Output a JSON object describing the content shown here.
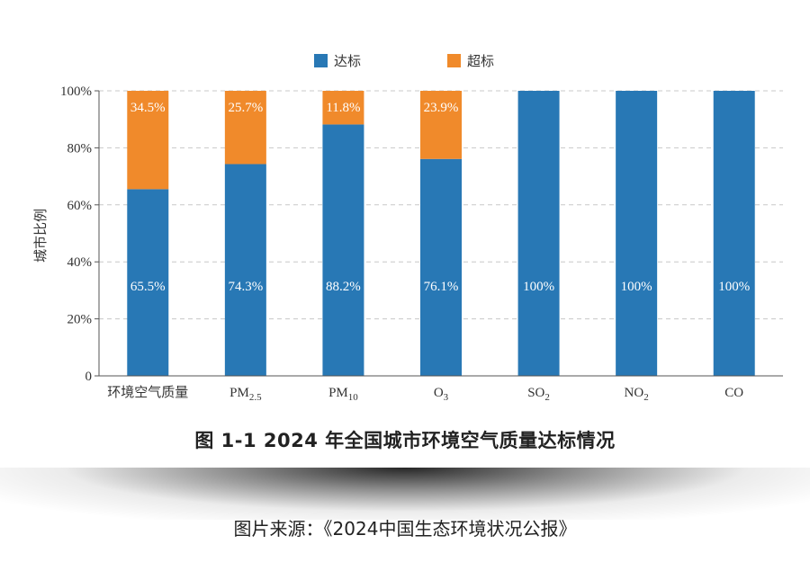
{
  "chart_data": {
    "type": "bar",
    "stacked": true,
    "title": "图 1-1  2024 年全国城市环境空气质量达标情况",
    "ylabel": "城市比例",
    "ylim": [
      0,
      100
    ],
    "yticks": [
      "0",
      "20%",
      "40%",
      "60%",
      "80%",
      "100%"
    ],
    "ytick_values": [
      0,
      20,
      40,
      60,
      80,
      100
    ],
    "categories": [
      {
        "name": "环境空气质量",
        "base": "环境空气质量",
        "sub": ""
      },
      {
        "name": "PM2.5",
        "base": "PM",
        "sub": "2.5"
      },
      {
        "name": "PM10",
        "base": "PM",
        "sub": "10"
      },
      {
        "name": "O3",
        "base": "O",
        "sub": "3"
      },
      {
        "name": "SO2",
        "base": "SO",
        "sub": "2"
      },
      {
        "name": "NO2",
        "base": "NO",
        "sub": "2"
      },
      {
        "name": "CO",
        "base": "CO",
        "sub": ""
      }
    ],
    "series": [
      {
        "name": "达标",
        "color": "#2878b5",
        "values": [
          65.5,
          74.3,
          88.2,
          76.1,
          100,
          100,
          100
        ],
        "labels": [
          "65.5%",
          "74.3%",
          "88.2%",
          "76.1%",
          "100%",
          "100%",
          "100%"
        ]
      },
      {
        "name": "超标",
        "color": "#f08a2b",
        "values": [
          34.5,
          25.7,
          11.8,
          23.9,
          0,
          0,
          0
        ],
        "labels": [
          "34.5%",
          "25.7%",
          "11.8%",
          "23.9%",
          "",
          "",
          ""
        ]
      }
    ],
    "grid": true,
    "legend_position": "top-center"
  },
  "caption": "图 1-1  2024 年全国城市环境空气质量达标情况",
  "source": "图片来源：《2024中国生态环境状况公报》"
}
